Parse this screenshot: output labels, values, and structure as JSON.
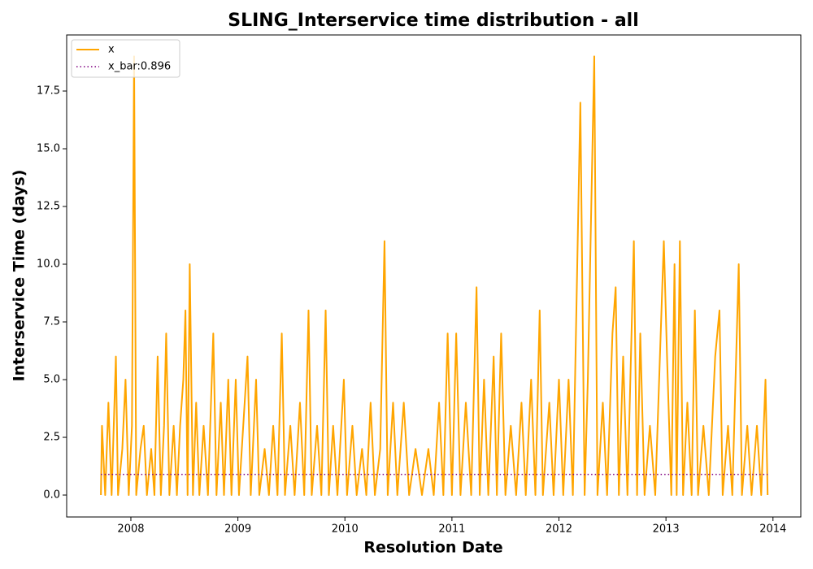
{
  "chart_data": {
    "type": "line",
    "title": "SLING_Interservice time distribution - all",
    "xlabel": "Resolution Date",
    "ylabel": "Interservice Time (days)",
    "xlim": [
      2007.4,
      2014.26
    ],
    "ylim": [
      -0.95,
      19.93
    ],
    "xticks": [
      2008,
      2009,
      2010,
      2011,
      2012,
      2013,
      2014
    ],
    "yticks": [
      {
        "value": 0,
        "label": "0.0"
      },
      {
        "value": 2.5,
        "label": "2.5"
      },
      {
        "value": 5,
        "label": "5.0"
      },
      {
        "value": 7.5,
        "label": "7.5"
      },
      {
        "value": 10,
        "label": "10.0"
      },
      {
        "value": 12.5,
        "label": "12.5"
      },
      {
        "value": 15,
        "label": "15.0"
      },
      {
        "value": 17.5,
        "label": "17.5"
      }
    ],
    "legend": "upper left",
    "series": [
      {
        "name": "x",
        "color": "#ffa500",
        "style": "solid",
        "x": [
          2007.72,
          2007.73,
          2007.76,
          2007.79,
          2007.82,
          2007.86,
          2007.88,
          2007.92,
          2007.95,
          2007.98,
          2008.01,
          2008.03,
          2008.05,
          2008.09,
          2008.12,
          2008.15,
          2008.19,
          2008.22,
          2008.25,
          2008.28,
          2008.31,
          2008.33,
          2008.36,
          2008.4,
          2008.43,
          2008.46,
          2008.49,
          2008.51,
          2008.53,
          2008.55,
          2008.58,
          2008.61,
          2008.64,
          2008.68,
          2008.72,
          2008.77,
          2008.8,
          2008.84,
          2008.87,
          2008.91,
          2008.94,
          2008.98,
          2009.01,
          2009.05,
          2009.09,
          2009.12,
          2009.17,
          2009.2,
          2009.25,
          2009.29,
          2009.33,
          2009.37,
          2009.41,
          2009.44,
          2009.49,
          2009.53,
          2009.58,
          2009.62,
          2009.66,
          2009.69,
          2009.74,
          2009.78,
          2009.82,
          2009.85,
          2009.89,
          2009.93,
          2009.99,
          2010.02,
          2010.07,
          2010.11,
          2010.16,
          2010.2,
          2010.24,
          2010.28,
          2010.33,
          2010.37,
          2010.4,
          2010.45,
          2010.49,
          2010.55,
          2010.6,
          2010.66,
          2010.72,
          2010.78,
          2010.83,
          2010.88,
          2010.92,
          2010.96,
          2011.0,
          2011.04,
          2011.08,
          2011.13,
          2011.18,
          2011.23,
          2011.26,
          2011.3,
          2011.34,
          2011.39,
          2011.42,
          2011.46,
          2011.5,
          2011.55,
          2011.6,
          2011.65,
          2011.69,
          2011.74,
          2011.78,
          2011.82,
          2011.85,
          2011.91,
          2011.95,
          2012.0,
          2012.04,
          2012.09,
          2012.13,
          2012.2,
          2012.24,
          2012.27,
          2012.33,
          2012.36,
          2012.41,
          2012.45,
          2012.5,
          2012.53,
          2012.56,
          2012.6,
          2012.64,
          2012.7,
          2012.73,
          2012.76,
          2012.8,
          2012.85,
          2012.9,
          2012.98,
          2013.01,
          2013.05,
          2013.08,
          2013.1,
          2013.13,
          2013.16,
          2013.2,
          2013.24,
          2013.27,
          2013.3,
          2013.35,
          2013.4,
          2013.46,
          2013.5,
          2013.53,
          2013.58,
          2013.62,
          2013.68,
          2013.71,
          2013.76,
          2013.8,
          2013.85,
          2013.89,
          2013.93,
          2013.95
        ],
        "values": [
          0,
          3,
          0,
          4,
          0,
          6,
          0,
          2,
          5,
          0,
          3,
          19,
          0,
          2,
          3,
          0,
          2,
          0,
          6,
          0,
          3,
          7,
          0,
          3,
          0,
          3,
          5,
          8,
          0,
          10,
          0,
          4,
          0,
          3,
          0,
          7,
          0,
          4,
          0,
          5,
          0,
          5,
          0,
          3,
          6,
          0,
          5,
          0,
          2,
          0,
          3,
          0,
          7,
          0,
          3,
          0,
          4,
          0,
          8,
          0,
          3,
          0,
          8,
          0,
          3,
          0,
          5,
          0,
          3,
          0,
          2,
          0,
          4,
          0,
          2,
          11,
          0,
          4,
          0,
          4,
          0,
          2,
          0,
          2,
          0,
          4,
          0,
          7,
          0,
          7,
          0,
          4,
          0,
          9,
          0,
          5,
          0,
          6,
          0,
          7,
          0,
          3,
          0,
          4,
          0,
          5,
          0,
          8,
          0,
          4,
          0,
          5,
          0,
          5,
          0,
          17,
          0,
          5,
          19,
          0,
          4,
          0,
          7,
          9,
          0,
          6,
          0,
          11,
          0,
          7,
          0,
          3,
          0,
          11,
          6,
          0,
          10,
          0,
          11,
          0,
          4,
          0,
          8,
          0,
          3,
          0,
          6,
          8,
          0,
          3,
          0,
          10,
          0,
          3,
          0,
          3,
          0,
          5,
          0
        ]
      },
      {
        "name": "x_bar:0.896",
        "color": "#800080",
        "style": "dotted",
        "x": [
          2007.72,
          2013.95
        ],
        "values": [
          0.896,
          0.896
        ]
      }
    ]
  }
}
